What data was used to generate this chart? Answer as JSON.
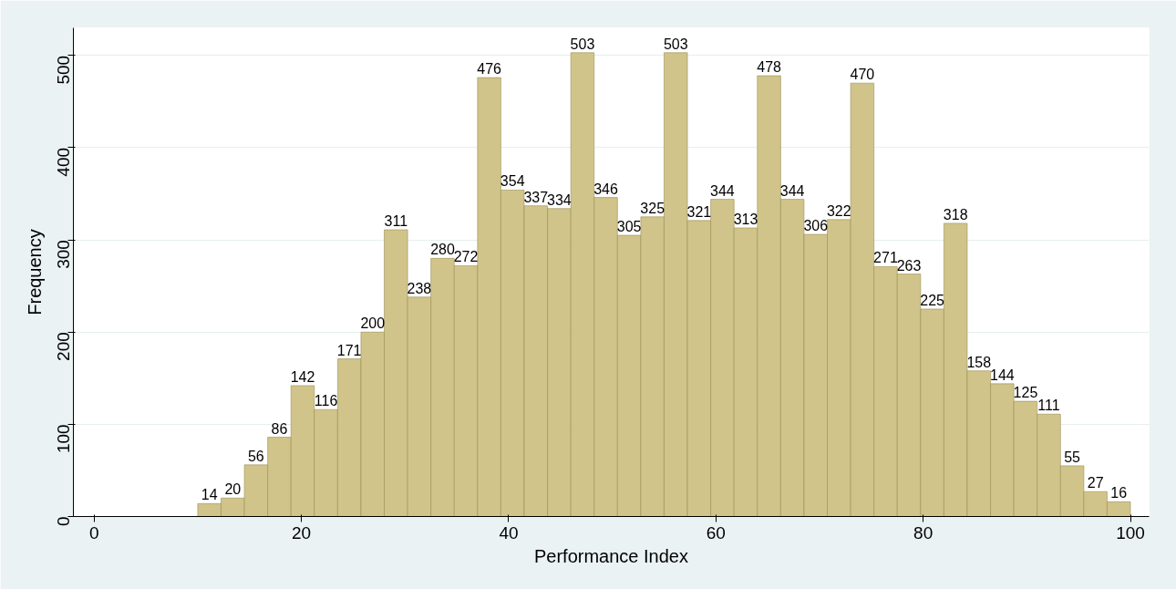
{
  "chart_data": {
    "type": "histogram",
    "xlabel": "Performance Index",
    "ylabel": "Frequency",
    "bins": [
      10,
      12.25,
      14.5,
      16.75,
      19,
      21.25,
      23.5,
      25.75,
      28,
      30.25,
      32.5,
      34.75,
      37,
      39.25,
      41.5,
      43.75,
      46,
      48.25,
      50.5,
      52.75,
      55,
      57.25,
      59.5,
      61.75,
      64,
      66.25,
      68.5,
      70.75,
      73,
      75.25,
      77.5,
      79.75,
      82,
      84.25,
      86.5,
      88.75,
      91,
      93.25,
      95.5,
      97.75,
      100
    ],
    "values": [
      14,
      20,
      56,
      86,
      142,
      116,
      171,
      200,
      311,
      238,
      280,
      272,
      476,
      354,
      337,
      334,
      503,
      346,
      305,
      325,
      503,
      321,
      344,
      313,
      478,
      344,
      306,
      322,
      470,
      271,
      263,
      225,
      318,
      158,
      144,
      125,
      111,
      55,
      27,
      16
    ],
    "color": "#d0c48a",
    "data_labels": true,
    "xlim": [
      -2,
      101.8
    ],
    "xticks": [
      0,
      20,
      40,
      60,
      80,
      100
    ],
    "ylim": [
      0,
      530
    ],
    "yticks": [
      0,
      100,
      200,
      300,
      400,
      500
    ],
    "grid": "y"
  }
}
